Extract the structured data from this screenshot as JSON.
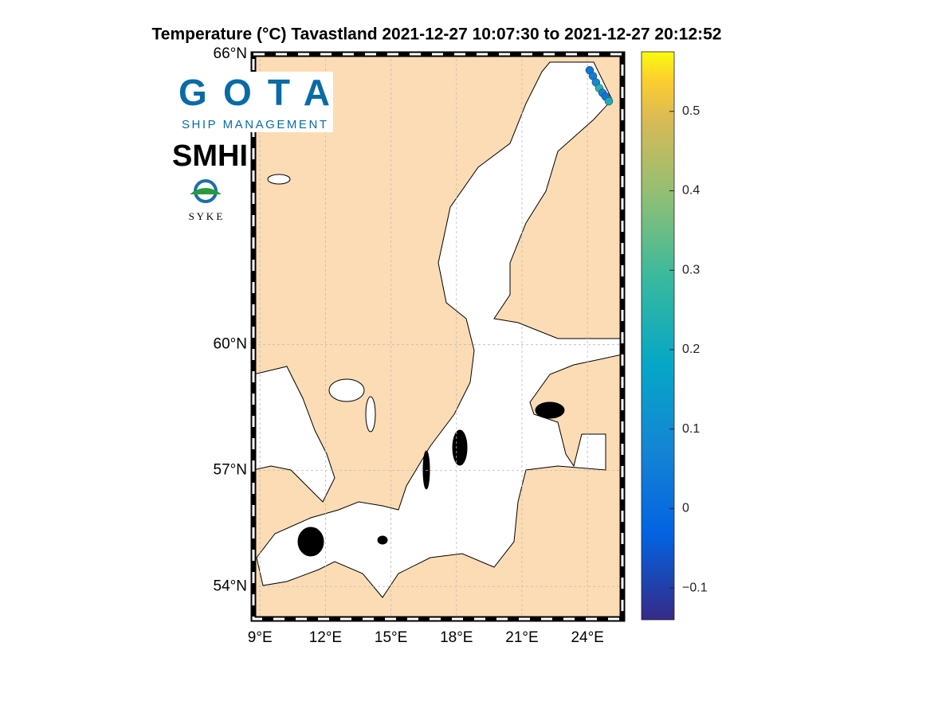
{
  "title": "Temperature (°C)  Tavastland 2021-12-27 10:07:30  to  2021-12-27 20:12:52",
  "logos": {
    "gota": "GOTA",
    "gota_sub": "SHIP MANAGEMENT",
    "smhi": "SMHI",
    "syke": "S Y K E"
  },
  "map": {
    "projection": "mercator",
    "xlim": [
      8.7,
      25.6
    ],
    "ylim": [
      53.12,
      66.0
    ],
    "xticks": [
      {
        "value": 9,
        "label": "9°E"
      },
      {
        "value": 12,
        "label": "12°E"
      },
      {
        "value": 15,
        "label": "15°E"
      },
      {
        "value": 18,
        "label": "18°E"
      },
      {
        "value": 21,
        "label": "21°E"
      },
      {
        "value": 24,
        "label": "24°E"
      }
    ],
    "yticks": [
      {
        "value": 54,
        "label": "54°N"
      },
      {
        "value": 57,
        "label": "57°N"
      },
      {
        "value": 60,
        "label": "60°N"
      },
      {
        "value": 66,
        "label": "66°N"
      }
    ],
    "grid": true,
    "land_color": "#fcdcb4"
  },
  "track": {
    "lon": [
      24.1,
      24.25,
      24.39,
      24.54,
      24.69,
      24.83,
      24.98
    ],
    "lat": [
      65.7,
      65.59,
      65.47,
      65.36,
      65.27,
      65.2,
      65.11
    ],
    "values": [
      0.03,
      0.05,
      0.08,
      0.25,
      0.06,
      0.02,
      0.22
    ]
  },
  "colorbar": {
    "clim": [
      -0.14,
      0.575
    ],
    "ticks": [
      {
        "value": -0.1,
        "label": "−0.1"
      },
      0,
      0.1,
      0.2,
      0.3,
      0.4,
      0.5
    ]
  }
}
